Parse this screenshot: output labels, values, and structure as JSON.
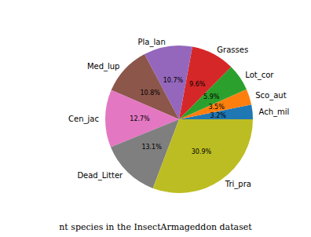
{
  "chart_data": {
    "type": "pie",
    "caption": "nt species in the InsectArmageddon dataset",
    "categories": [
      "Ach_mil",
      "Sco_aut",
      "Lot_cor",
      "Grasses",
      "Pla_lan",
      "Med_lup",
      "Cen_jac",
      "Dead_Litter",
      "Tri_pra"
    ],
    "values": [
      3.2,
      3.5,
      5.9,
      9.6,
      10.7,
      10.8,
      12.7,
      13.1,
      30.9
    ],
    "value_labels": [
      "3.2%",
      "3.5%",
      "5.9%",
      "9.6%",
      "10.7%",
      "10.8%",
      "12.7%",
      "13.1%",
      "30.9%"
    ],
    "colors": [
      "#1f77b4",
      "#ff7f0e",
      "#2ca02c",
      "#d62728",
      "#9467bd",
      "#8c564b",
      "#e377c2",
      "#7f7f7f",
      "#bcbd22"
    ],
    "data_labels": true
  }
}
